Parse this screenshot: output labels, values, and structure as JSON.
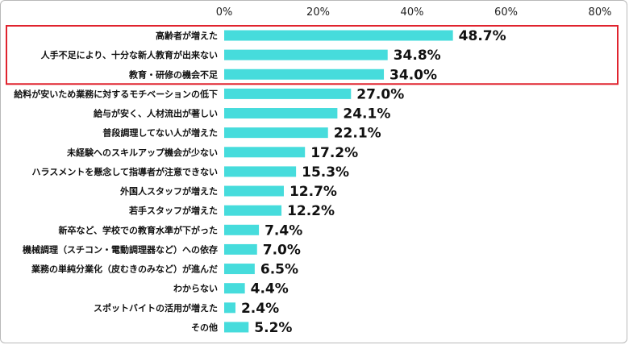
{
  "chart_data": {
    "type": "bar",
    "orientation": "horizontal",
    "categories": [
      "高齢者が増えた",
      "人手不足により、十分な新人教育が出来ない",
      "教育・研修の機会不足",
      "給料が安いため業務に対するモチベーションの低下",
      "給与が安く、人材流出が著しい",
      "普段調理してない人が増えた",
      "未経験へのスキルアップ機会が少ない",
      "ハラスメントを懸念して指導者が注意できない",
      "外国人スタッフが増えた",
      "若手スタッフが増えた",
      "新卒など、学校での教育水準が下がった",
      "機械調理（スチコン・電動調理器など）への依存",
      "業務の単純分業化（皮むきのみなど）が進んだ",
      "わからない",
      "スポットバイトの活用が増えた",
      "その他"
    ],
    "values": [
      48.7,
      34.8,
      34.0,
      27.0,
      24.1,
      22.1,
      17.2,
      15.3,
      12.7,
      12.2,
      7.4,
      7.0,
      6.5,
      4.4,
      2.4,
      5.2
    ],
    "value_labels": [
      "48.7%",
      "34.8%",
      "34.0%",
      "27.0%",
      "24.1%",
      "22.1%",
      "17.2%",
      "15.3%",
      "12.7%",
      "12.2%",
      "7.4%",
      "7.0%",
      "6.5%",
      "4.4%",
      "2.4%",
      "5.2%"
    ],
    "xlim": [
      0,
      80
    ],
    "xticks": [
      0,
      20,
      40,
      60,
      80
    ],
    "xtick_labels": [
      "0%",
      "20%",
      "40%",
      "60%",
      "80%"
    ],
    "highlighted_categories": [
      0,
      1,
      2
    ],
    "grid": false,
    "legend": "none"
  },
  "colors": {
    "bar": "#46dcdc",
    "highlight_box": "#e0232e",
    "text": "#111111",
    "frame": "#b9b9b9"
  }
}
